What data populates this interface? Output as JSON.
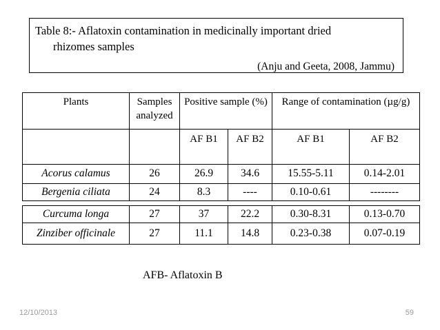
{
  "slide": {
    "title_box": {
      "line1": "Table 8:- Aflatoxin contamination in medicinally important dried",
      "line2": "rhizomes samples",
      "attribution": "(Anju and Geeta, 2008, Jammu)"
    },
    "table": {
      "header": {
        "plants": "Plants",
        "samples": "Samples analyzed",
        "positive": "Positive sample (%)",
        "range": "Range of contamination (µg/g)",
        "sub": [
          "AF B1",
          "AF B2",
          "AF B1",
          "AF B2"
        ]
      },
      "rows": [
        {
          "plant": "Acorus calamus",
          "samples": "26",
          "pos_b1": "26.9",
          "pos_b2": "34.6",
          "range_b1": "15.55-5.11",
          "range_b2": "0.14-2.01"
        },
        {
          "plant": "Bergenia ciliata",
          "samples": "24",
          "pos_b1": "8.3",
          "pos_b2": "----",
          "range_b1": "0.10-0.61",
          "range_b2": "--------"
        },
        {
          "plant": "Curcuma longa",
          "samples": "27",
          "pos_b1": "37",
          "pos_b2": "22.2",
          "range_b1": "0.30-8.31",
          "range_b2": "0.13-0.70"
        },
        {
          "plant": "Zinziber officinale",
          "samples": "27",
          "pos_b1": "11.1",
          "pos_b2": "14.8",
          "range_b1": "0.23-0.38",
          "range_b2": "0.07-0.19"
        }
      ]
    },
    "footnote": "AFB- Aflatoxin B",
    "footer": {
      "date": "12/10/2013",
      "page": "59"
    }
  },
  "colors": {
    "background": "#ffffff",
    "text": "#000000",
    "border": "#000000",
    "footer_text": "#9a9a9a"
  }
}
